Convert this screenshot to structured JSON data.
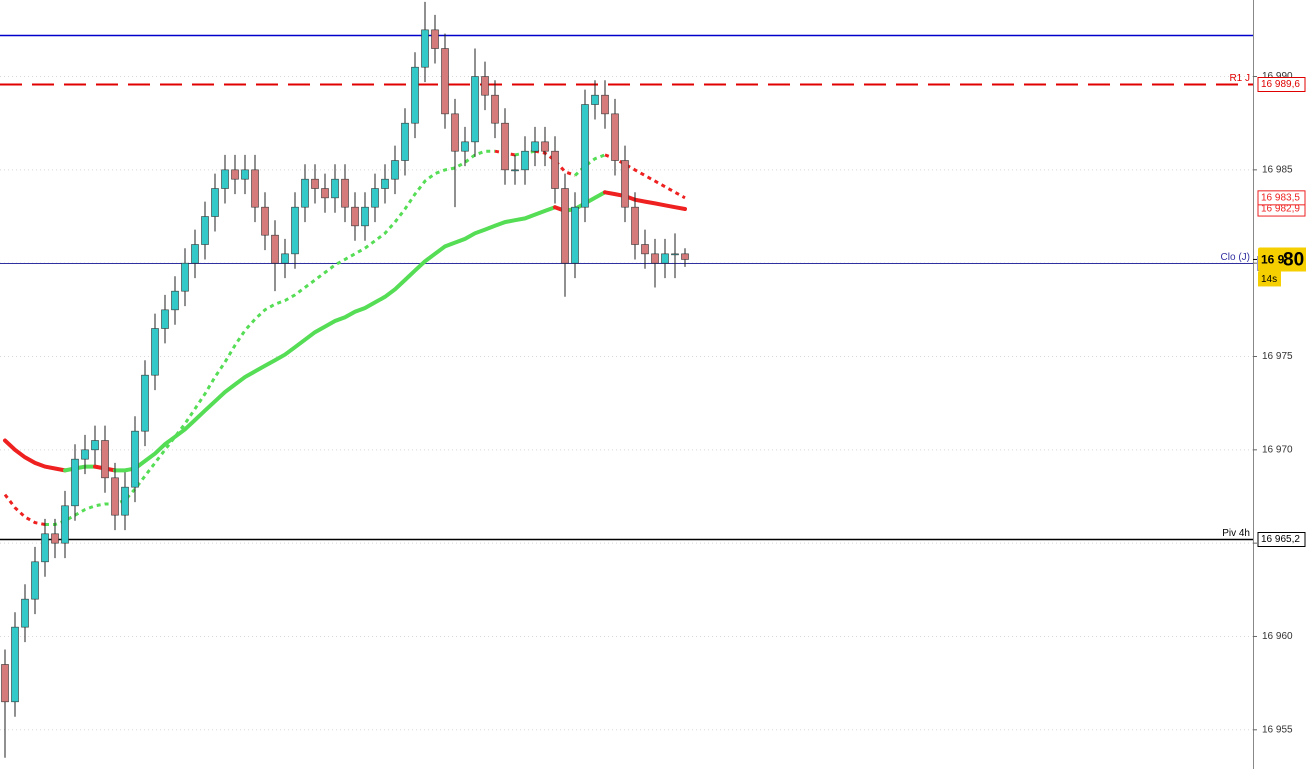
{
  "chart_data": {
    "type": "candlestick",
    "ylim": [
      16952.9,
      16994.1
    ],
    "yticks": [
      {
        "value": 16955,
        "label": "16 955"
      },
      {
        "value": 16960,
        "label": "16 960"
      },
      {
        "value": 16965,
        "label": "16 965"
      },
      {
        "value": 16970,
        "label": "16 970"
      },
      {
        "value": 16975,
        "label": "16 975"
      },
      {
        "value": 16980,
        "label": "16 980"
      },
      {
        "value": 16985,
        "label": "16 985"
      },
      {
        "value": 16990,
        "label": "16 990"
      }
    ],
    "grid": true,
    "up_color": "#33c9c9",
    "down_color": "#d67b7b",
    "open": [
      16958.5,
      16956.5,
      16960.5,
      16962,
      16964,
      16965.5,
      16965,
      16967,
      16969.5,
      16970,
      16970.5,
      16968.5,
      16966.5,
      16968,
      16971,
      16974,
      16976.5,
      16977.5,
      16978.5,
      16980,
      16981,
      16982.5,
      16984,
      16985,
      16984.5,
      16985,
      16983,
      16981.5,
      16980,
      16980.5,
      16983,
      16984.5,
      16984,
      16983.5,
      16984.5,
      16983,
      16982,
      16983,
      16984,
      16984.5,
      16985.5,
      16987.5,
      16990.5,
      16992.5,
      16991.5,
      16988,
      16986,
      16986.5,
      16990,
      16989,
      16987.5,
      16985,
      16985,
      16986,
      16986.5,
      16986,
      16984,
      16980,
      16983,
      16988.5,
      16989,
      16988,
      16985.5,
      16983,
      16981,
      16980.5,
      16980,
      16980.5,
      16980.5
    ],
    "high": [
      16959.3,
      16961.3,
      16962.8,
      16964.8,
      16966.3,
      16966.3,
      16967.8,
      16970.3,
      16970.8,
      16971.3,
      16971.3,
      16969.3,
      16968.8,
      16971.8,
      16974.8,
      16977.3,
      16978.3,
      16979.3,
      16980.8,
      16981.8,
      16983.3,
      16984.8,
      16985.8,
      16985.8,
      16985.8,
      16985.8,
      16983.8,
      16982.3,
      16981.3,
      16983.8,
      16985.3,
      16985.3,
      16984.8,
      16985.3,
      16985.3,
      16983.8,
      16983.8,
      16984.8,
      16985.3,
      16986.3,
      16988.3,
      16991.3,
      16994,
      16993.3,
      16992.3,
      16988.8,
      16987.3,
      16991.5,
      16990.8,
      16989.8,
      16988.3,
      16985.8,
      16986.8,
      16987.3,
      16987.3,
      16986.8,
      16984.8,
      16983.8,
      16989.3,
      16989.8,
      16989.8,
      16988.8,
      16986.3,
      16983.8,
      16981.8,
      16981.3,
      16981.3,
      16981.6,
      16980.8
    ],
    "low": [
      16953.5,
      16955.7,
      16959.7,
      16961.2,
      16963.2,
      16964.2,
      16964.2,
      16966.2,
      16968.7,
      16969.2,
      16967.7,
      16965.7,
      16965.7,
      16967.2,
      16970.2,
      16973.2,
      16975.7,
      16976.7,
      16977.7,
      16979.2,
      16980.2,
      16981.7,
      16983.2,
      16983.7,
      16983.7,
      16982.2,
      16980.7,
      16978.5,
      16979.2,
      16979.7,
      16982.2,
      16983.2,
      16982.7,
      16982.7,
      16982.2,
      16981.2,
      16981.2,
      16982.2,
      16983.2,
      16983.7,
      16984.7,
      16986.7,
      16989.7,
      16990.7,
      16987.2,
      16983,
      16985.2,
      16985.7,
      16988.2,
      16986.7,
      16984.2,
      16984.2,
      16984.2,
      16985.2,
      16985.2,
      16983.2,
      16978.2,
      16979.2,
      16982.2,
      16987.7,
      16987.2,
      16984.7,
      16982.2,
      16980.2,
      16979.7,
      16978.7,
      16979.2,
      16979.2,
      16979.8
    ],
    "close": [
      16956.5,
      16960.5,
      16962,
      16964,
      16965.5,
      16965,
      16967,
      16969.5,
      16970,
      16970.5,
      16968.5,
      16966.5,
      16968,
      16971,
      16974,
      16976.5,
      16977.5,
      16978.5,
      16980,
      16981,
      16982.5,
      16984,
      16985,
      16984.5,
      16985,
      16983,
      16981.5,
      16980,
      16980.5,
      16983,
      16984.5,
      16984,
      16983.5,
      16984.5,
      16983,
      16982,
      16983,
      16984,
      16984.5,
      16985.5,
      16987.5,
      16990.5,
      16992.5,
      16991.5,
      16988,
      16986,
      16986.5,
      16990,
      16989,
      16987.5,
      16985,
      16985,
      16986,
      16986.5,
      16986,
      16984,
      16980,
      16983,
      16988.5,
      16989,
      16988,
      16985.5,
      16983,
      16981,
      16980.5,
      16980,
      16980.5,
      16980.5,
      16980.2
    ],
    "rise_color": "#55dd55",
    "fall_color": "#ee2020",
    "averages": [
      {
        "style": "solid",
        "tag": "16 982,9",
        "values": [
          16970.5,
          16970,
          16969.6,
          16969.3,
          16969.1,
          16969,
          16968.9,
          16969,
          16969.1,
          16969.1,
          16969,
          16968.9,
          16968.9,
          16969,
          16969.4,
          16969.8,
          16970.3,
          16970.7,
          16971.1,
          16971.6,
          16972.1,
          16972.6,
          16973.1,
          16973.5,
          16973.9,
          16974.2,
          16974.5,
          16974.8,
          16975.1,
          16975.5,
          16975.9,
          16976.3,
          16976.6,
          16976.9,
          16977.1,
          16977.4,
          16977.6,
          16977.9,
          16978.2,
          16978.6,
          16979.1,
          16979.6,
          16980.1,
          16980.5,
          16980.9,
          16981.1,
          16981.3,
          16981.6,
          16981.8,
          16982,
          16982.2,
          16982.3,
          16982.4,
          16982.6,
          16982.8,
          16983,
          16982.8,
          16982.9,
          16983.2,
          16983.5,
          16983.8,
          16983.7,
          16983.6,
          16983.4,
          16983.3,
          16983.2,
          16983.1,
          16983,
          16982.9
        ]
      },
      {
        "style": "dotted",
        "tag": "16 983,5",
        "values": [
          16967.6,
          16966.9,
          16966.4,
          16966.1,
          16966,
          16966,
          16966.2,
          16966.5,
          16966.8,
          16967,
          16967.1,
          16967.1,
          16967.3,
          16967.9,
          16968.6,
          16969.3,
          16970,
          16970.7,
          16971.4,
          16972.2,
          16973,
          16973.9,
          16974.7,
          16975.6,
          16976.4,
          16977,
          16977.5,
          16977.8,
          16978,
          16978.3,
          16978.7,
          16979.1,
          16979.5,
          16979.9,
          16980.2,
          16980.5,
          16980.8,
          16981.2,
          16981.6,
          16982.2,
          16982.9,
          16983.7,
          16984.4,
          16984.8,
          16985,
          16985.1,
          16985.4,
          16985.8,
          16986,
          16986,
          16985.9,
          16985.8,
          16985.9,
          16986,
          16985.9,
          16985.5,
          16984.9,
          16984.7,
          16985.2,
          16985.6,
          16985.8,
          16985.6,
          16985.3,
          16985,
          16984.7,
          16984.4,
          16984.1,
          16983.8,
          16983.5
        ]
      }
    ],
    "levels": [
      {
        "value": 16992.2,
        "color": "#0000cc",
        "style": "solid"
      },
      {
        "name": "R1 J",
        "value": 16989.6,
        "label": "16 989,6",
        "color": "#e00000",
        "style": "dashed"
      },
      {
        "name": "Clo (J)",
        "value": 16980.0,
        "label": "16 980,0",
        "color": "#3030a0",
        "style": "thin"
      },
      {
        "name": "Piv 4h",
        "value": 16965.2,
        "label": "16 965,2",
        "color": "#000000",
        "style": "solid"
      }
    ],
    "last_price": {
      "value": 16980.2,
      "label_main": "16 9",
      "label_big": "80",
      "timer": "14s"
    }
  }
}
